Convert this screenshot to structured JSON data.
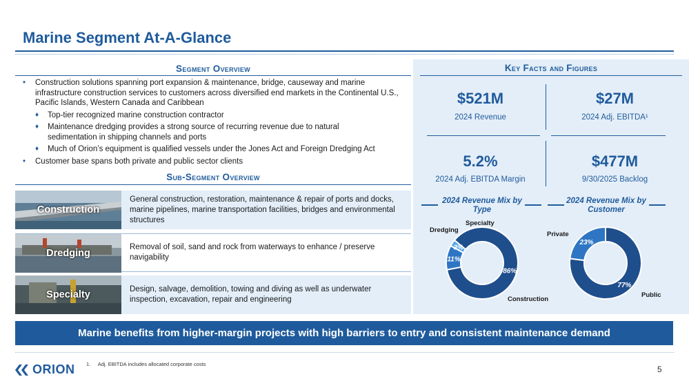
{
  "title": "Marine Segment At-A-Glance",
  "segment_overview": {
    "heading": "Segment Overview",
    "bullets": [
      "Construction solutions spanning port expansion & maintenance, bridge, causeway and marine infrastructure construction services to customers across diversified end markets in the Continental U.S., Pacific Islands, Western Canada and Caribbean",
      "Customer base spans both private and public sector clients"
    ],
    "sub_bullets": [
      "Top-tier recognized marine construction contractor",
      "Maintenance dredging provides a strong source of recurring revenue due to natural sedimentation in shipping channels and ports",
      "Much of Orion’s equipment is qualified vessels under the Jones Act and Foreign Dredging Act"
    ]
  },
  "sub_segment_overview": {
    "heading": "Sub-Segment Overview",
    "rows": [
      {
        "name": "Construction",
        "description": "General construction, restoration, maintenance & repair of ports and docks, marine pipelines, marine transportation facilities, bridges and environmental structures"
      },
      {
        "name": "Dredging",
        "description": "Removal of soil, sand and rock from waterways to enhance / preserve navigability"
      },
      {
        "name": "Specialty",
        "description": "Design, salvage, demolition, towing and diving as well as underwater inspection, excavation, repair and engineering"
      }
    ]
  },
  "key_facts": {
    "heading": "Key Facts and Figures",
    "items": [
      {
        "value": "$521M",
        "label": "2024 Revenue"
      },
      {
        "value": "$27M",
        "label": "2024 Adj. EBITDA¹"
      },
      {
        "value": "5.2%",
        "label": "2024 Adj. EBITDA Margin"
      },
      {
        "value": "$477M",
        "label": "9/30/2025 Backlog"
      }
    ]
  },
  "chart_data": [
    {
      "type": "pie",
      "title": "2024 Revenue Mix by Type",
      "categories": [
        "Construction",
        "Dredging",
        "Specialty"
      ],
      "values": [
        86,
        11,
        3
      ],
      "labels": [
        "86%",
        "11%",
        "3%"
      ],
      "colors": [
        "#1f4e8c",
        "#2e75c4",
        "#5aa6e8"
      ]
    },
    {
      "type": "pie",
      "title": "2024 Revenue Mix by Customer",
      "categories": [
        "Public",
        "Private"
      ],
      "values": [
        77,
        23
      ],
      "labels": [
        "77%",
        "23%"
      ],
      "colors": [
        "#1f4e8c",
        "#2e75c4"
      ]
    }
  ],
  "banner": "Marine benefits from higher-margin projects with high barriers to entry and consistent maintenance demand",
  "footer": {
    "logo_text": "ORION",
    "footnote_number": "1.",
    "footnote": "Adj. EBITDA includes allocated corporate costs",
    "page_number": "5"
  },
  "colors": {
    "brand_blue": "#1f5b9c",
    "panel_bg": "#e4eef8",
    "row_bg": "#e3eef9"
  }
}
